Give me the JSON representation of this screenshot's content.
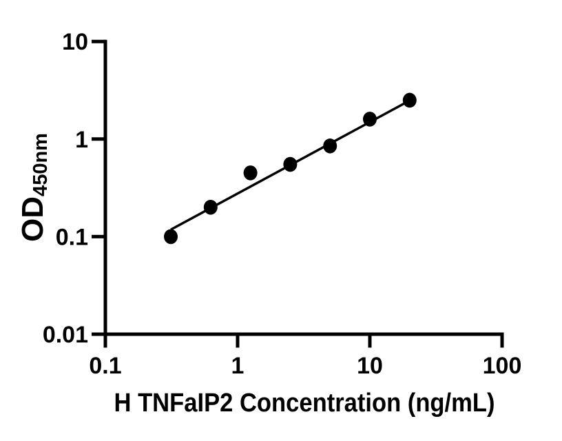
{
  "figure": {
    "background_color": "#ffffff",
    "axis_color": "#000000",
    "marker_color": "#000000",
    "trendline_color": "#000000"
  },
  "chart_data": {
    "type": "scatter",
    "title": "",
    "xlabel": "H TNFaIP2 Concentration (ng/mL)",
    "ylabel_main": "OD",
    "ylabel_subscript": "450nm",
    "xscale": "log",
    "yscale": "log",
    "xlim": [
      0.1,
      100
    ],
    "ylim": [
      0.01,
      10
    ],
    "x_ticks": [
      0.1,
      1,
      10,
      100
    ],
    "x_tick_labels": [
      "0.1",
      "1",
      "10",
      "100"
    ],
    "y_ticks": [
      0.01,
      0.1,
      1,
      10
    ],
    "y_tick_labels": [
      "0.01",
      "0.1",
      "1",
      "10"
    ],
    "grid": false,
    "legend": null,
    "points": [
      {
        "x": 0.3125,
        "y": 0.1
      },
      {
        "x": 0.625,
        "y": 0.2
      },
      {
        "x": 1.25,
        "y": 0.45
      },
      {
        "x": 2.5,
        "y": 0.55
      },
      {
        "x": 5,
        "y": 0.85
      },
      {
        "x": 10,
        "y": 1.6
      },
      {
        "x": 20,
        "y": 2.5
      }
    ],
    "trend_line": {
      "x_start": 0.3125,
      "y_start": 0.118,
      "x_end": 20,
      "y_end": 2.48
    }
  }
}
